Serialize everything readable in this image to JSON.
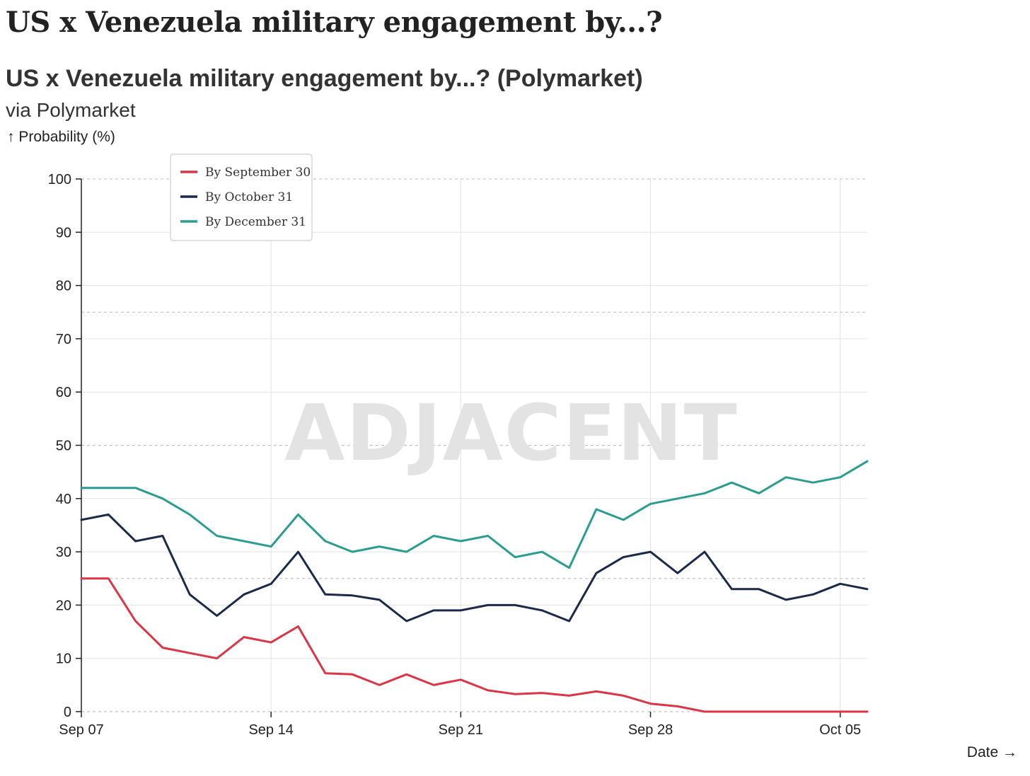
{
  "header": {
    "page_title": "US x Venezuela military engagement by...?"
  },
  "chart_data": {
    "type": "line",
    "title": "US x Venezuela military engagement by...? (Polymarket)",
    "subtitle": "via Polymarket",
    "ylabel": "↑ Probability (%)",
    "xlabel": "Date →",
    "ylim": [
      0,
      100
    ],
    "yticks": [
      0,
      10,
      20,
      30,
      40,
      50,
      60,
      70,
      80,
      90,
      100
    ],
    "xlim": [
      "2025-09-07",
      "2025-10-06"
    ],
    "xticks": [
      {
        "date": "2025-09-07",
        "label": "Sep 07"
      },
      {
        "date": "2025-09-14",
        "label": "Sep 14"
      },
      {
        "date": "2025-09-21",
        "label": "Sep 21"
      },
      {
        "date": "2025-09-28",
        "label": "Sep 28"
      },
      {
        "date": "2025-10-05",
        "label": "Oct 05"
      }
    ],
    "reference_lines_y": [
      25,
      75
    ],
    "grid": true,
    "legend_position": "top-left",
    "watermark": "ADJACENT",
    "x": [
      "2025-09-07",
      "2025-09-08",
      "2025-09-09",
      "2025-09-10",
      "2025-09-11",
      "2025-09-12",
      "2025-09-13",
      "2025-09-14",
      "2025-09-15",
      "2025-09-16",
      "2025-09-17",
      "2025-09-18",
      "2025-09-19",
      "2025-09-20",
      "2025-09-21",
      "2025-09-22",
      "2025-09-23",
      "2025-09-24",
      "2025-09-25",
      "2025-09-26",
      "2025-09-27",
      "2025-09-28",
      "2025-09-29",
      "2025-09-30",
      "2025-10-01",
      "2025-10-02",
      "2025-10-03",
      "2025-10-04",
      "2025-10-05",
      "2025-10-06"
    ],
    "series": [
      {
        "name": "By September 30",
        "color": "#dc3545",
        "values": [
          25,
          25,
          17,
          12,
          11,
          10,
          14,
          13,
          16,
          7.2,
          7,
          5,
          7,
          5,
          6,
          4,
          3.3,
          3.5,
          3,
          3.8,
          3,
          1.5,
          1,
          0,
          0,
          0,
          0,
          0,
          0,
          0
        ]
      },
      {
        "name": "By October 31",
        "color": "#1b2a4a",
        "values": [
          36,
          37,
          32,
          33,
          22,
          18,
          22,
          24,
          30,
          22,
          21.8,
          21,
          17,
          19,
          19,
          20,
          20,
          19,
          17,
          26,
          29,
          30,
          26,
          30,
          23,
          23,
          21,
          22,
          24,
          23
        ]
      },
      {
        "name": "By December 31",
        "color": "#2a9d8f",
        "values": [
          42,
          42,
          42,
          40,
          37,
          33,
          32,
          31,
          37,
          32,
          30,
          31,
          30,
          33,
          32,
          33,
          29,
          30,
          27,
          38,
          36,
          39,
          40,
          41,
          43,
          41,
          44,
          43,
          44,
          47
        ]
      }
    ]
  }
}
